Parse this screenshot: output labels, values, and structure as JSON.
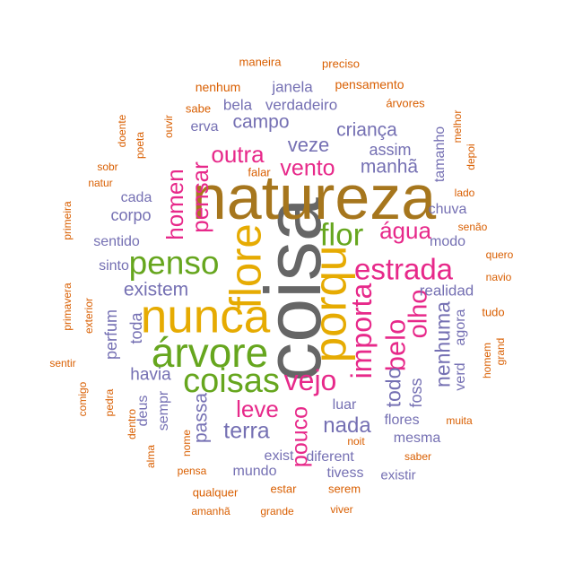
{
  "palette": {
    "orange": "#D95F02",
    "purple": "#7570B3",
    "magenta": "#E7298A",
    "green": "#66A61E",
    "gold": "#E6AB02",
    "brown": "#A6761D",
    "gray": "#666666"
  },
  "words": [
    {
      "text": "coisa",
      "color": "gray",
      "weight": 1,
      "vertical": true
    },
    {
      "text": "natureza",
      "color": "brown",
      "weight": 0.8
    },
    {
      "text": "porqu",
      "color": "gold",
      "weight": 0.58,
      "vertical": true
    },
    {
      "text": "nunca",
      "color": "gold",
      "weight": 0.6
    },
    {
      "text": "flore",
      "color": "gold",
      "weight": 0.56,
      "vertical": true
    },
    {
      "text": "árvore",
      "color": "green",
      "weight": 0.52
    },
    {
      "text": "penso",
      "color": "green",
      "weight": 0.42
    },
    {
      "text": "flor",
      "color": "green",
      "weight": 0.4
    },
    {
      "text": "coisas",
      "color": "green",
      "weight": 0.43
    },
    {
      "text": "importa",
      "color": "magenta",
      "weight": 0.36,
      "vertical": true
    },
    {
      "text": "estrada",
      "color": "magenta",
      "weight": 0.37
    },
    {
      "text": "vejo",
      "color": "magenta",
      "weight": 0.36
    },
    {
      "text": "belo",
      "color": "magenta",
      "weight": 0.35,
      "vertical": true
    },
    {
      "text": "olho",
      "color": "magenta",
      "weight": 0.33,
      "vertical": true
    },
    {
      "text": "homen",
      "color": "magenta",
      "weight": 0.3,
      "vertical": true
    },
    {
      "text": "pensar",
      "color": "magenta",
      "weight": 0.3,
      "vertical": true
    },
    {
      "text": "água",
      "color": "magenta",
      "weight": 0.3
    },
    {
      "text": "outra",
      "color": "magenta",
      "weight": 0.29
    },
    {
      "text": "vento",
      "color": "magenta",
      "weight": 0.28
    },
    {
      "text": "leve",
      "color": "magenta",
      "weight": 0.3
    },
    {
      "text": "pouco",
      "color": "magenta",
      "weight": 0.28,
      "vertical": true
    },
    {
      "text": "terra",
      "color": "purple",
      "weight": 0.28
    },
    {
      "text": "nada",
      "color": "purple",
      "weight": 0.27
    },
    {
      "text": "todo",
      "color": "purple",
      "weight": 0.26,
      "vertical": true
    },
    {
      "text": "nenhuma",
      "color": "purple",
      "weight": 0.26,
      "vertical": true
    },
    {
      "text": "existem",
      "color": "purple",
      "weight": 0.24
    },
    {
      "text": "veze",
      "color": "purple",
      "weight": 0.25
    },
    {
      "text": "manhã",
      "color": "purple",
      "weight": 0.24
    },
    {
      "text": "criança",
      "color": "purple",
      "weight": 0.24
    },
    {
      "text": "campo",
      "color": "purple",
      "weight": 0.24
    },
    {
      "text": "passa",
      "color": "purple",
      "weight": 0.24,
      "vertical": true
    },
    {
      "text": "havia",
      "color": "purple",
      "weight": 0.22
    },
    {
      "text": "corpo",
      "color": "purple",
      "weight": 0.21
    },
    {
      "text": "perfum",
      "color": "purple",
      "weight": 0.21,
      "vertical": true
    },
    {
      "text": "foss",
      "color": "purple",
      "weight": 0.21,
      "vertical": true
    },
    {
      "text": "toda",
      "color": "purple",
      "weight": 0.2,
      "vertical": true
    },
    {
      "text": "realidad",
      "color": "purple",
      "weight": 0.19
    },
    {
      "text": "chuva",
      "color": "purple",
      "weight": 0.18
    },
    {
      "text": "assim",
      "color": "purple",
      "weight": 0.2
    },
    {
      "text": "janela",
      "color": "purple",
      "weight": 0.19
    },
    {
      "text": "bela",
      "color": "purple",
      "weight": 0.19
    },
    {
      "text": "verdadeiro",
      "color": "purple",
      "weight": 0.19
    },
    {
      "text": "erva",
      "color": "purple",
      "weight": 0.18
    },
    {
      "text": "cada",
      "color": "purple",
      "weight": 0.18
    },
    {
      "text": "sentido",
      "color": "purple",
      "weight": 0.18
    },
    {
      "text": "sinto",
      "color": "purple",
      "weight": 0.18
    },
    {
      "text": "modo",
      "color": "purple",
      "weight": 0.18
    },
    {
      "text": "tamanho",
      "color": "purple",
      "weight": 0.18,
      "vertical": true
    },
    {
      "text": "agora",
      "color": "purple",
      "weight": 0.18,
      "vertical": true
    },
    {
      "text": "verd",
      "color": "purple",
      "weight": 0.18,
      "vertical": true
    },
    {
      "text": "deus",
      "color": "purple",
      "weight": 0.18,
      "vertical": true
    },
    {
      "text": "sempr",
      "color": "purple",
      "weight": 0.18,
      "vertical": true
    },
    {
      "text": "luar",
      "color": "purple",
      "weight": 0.18
    },
    {
      "text": "flores",
      "color": "purple",
      "weight": 0.18
    },
    {
      "text": "mesma",
      "color": "purple",
      "weight": 0.18
    },
    {
      "text": "exist",
      "color": "purple",
      "weight": 0.18
    },
    {
      "text": "diferent",
      "color": "purple",
      "weight": 0.18
    },
    {
      "text": "mundo",
      "color": "purple",
      "weight": 0.18
    },
    {
      "text": "tivess",
      "color": "purple",
      "weight": 0.18
    },
    {
      "text": "existir",
      "color": "purple",
      "weight": 0.17
    },
    {
      "text": "maneira",
      "color": "orange",
      "weight": 0.15
    },
    {
      "text": "preciso",
      "color": "orange",
      "weight": 0.15
    },
    {
      "text": "nenhum",
      "color": "orange",
      "weight": 0.16
    },
    {
      "text": "pensamento",
      "color": "orange",
      "weight": 0.16
    },
    {
      "text": "sabe",
      "color": "orange",
      "weight": 0.15
    },
    {
      "text": "árvores",
      "color": "orange",
      "weight": 0.15
    },
    {
      "text": "ouvir",
      "color": "orange",
      "weight": 0.14,
      "vertical": true
    },
    {
      "text": "doente",
      "color": "orange",
      "weight": 0.14,
      "vertical": true
    },
    {
      "text": "poeta",
      "color": "orange",
      "weight": 0.14,
      "vertical": true
    },
    {
      "text": "sobr",
      "color": "orange",
      "weight": 0.14
    },
    {
      "text": "natur",
      "color": "orange",
      "weight": 0.14
    },
    {
      "text": "falar",
      "color": "orange",
      "weight": 0.15
    },
    {
      "text": "melhor",
      "color": "orange",
      "weight": 0.14,
      "vertical": true
    },
    {
      "text": "depoi",
      "color": "orange",
      "weight": 0.14,
      "vertical": true
    },
    {
      "text": "lado",
      "color": "orange",
      "weight": 0.14
    },
    {
      "text": "senão",
      "color": "orange",
      "weight": 0.14
    },
    {
      "text": "quero",
      "color": "orange",
      "weight": 0.14
    },
    {
      "text": "navio",
      "color": "orange",
      "weight": 0.14
    },
    {
      "text": "primeira",
      "color": "orange",
      "weight": 0.14,
      "vertical": true
    },
    {
      "text": "primavera",
      "color": "orange",
      "weight": 0.14,
      "vertical": true
    },
    {
      "text": "exterior",
      "color": "orange",
      "weight": 0.14,
      "vertical": true
    },
    {
      "text": "sentir",
      "color": "orange",
      "weight": 0.14
    },
    {
      "text": "comigo",
      "color": "orange",
      "weight": 0.14,
      "vertical": true
    },
    {
      "text": "pedra",
      "color": "orange",
      "weight": 0.14,
      "vertical": true
    },
    {
      "text": "dentro",
      "color": "orange",
      "weight": 0.14,
      "vertical": true
    },
    {
      "text": "alma",
      "color": "orange",
      "weight": 0.14,
      "vertical": true
    },
    {
      "text": "nome",
      "color": "orange",
      "weight": 0.14,
      "vertical": true
    },
    {
      "text": "tudo",
      "color": "orange",
      "weight": 0.15
    },
    {
      "text": "grand",
      "color": "orange",
      "weight": 0.14,
      "vertical": true
    },
    {
      "text": "homem",
      "color": "orange",
      "weight": 0.14,
      "vertical": true
    },
    {
      "text": "muita",
      "color": "orange",
      "weight": 0.14
    },
    {
      "text": "noit",
      "color": "orange",
      "weight": 0.14
    },
    {
      "text": "saber",
      "color": "orange",
      "weight": 0.14
    },
    {
      "text": "pensa",
      "color": "orange",
      "weight": 0.14
    },
    {
      "text": "qualquer",
      "color": "orange",
      "weight": 0.15
    },
    {
      "text": "estar",
      "color": "orange",
      "weight": 0.15
    },
    {
      "text": "serem",
      "color": "orange",
      "weight": 0.15
    },
    {
      "text": "amanhã",
      "color": "orange",
      "weight": 0.14
    },
    {
      "text": "grande",
      "color": "orange",
      "weight": 0.14
    },
    {
      "text": "viver",
      "color": "orange",
      "weight": 0.14
    }
  ]
}
